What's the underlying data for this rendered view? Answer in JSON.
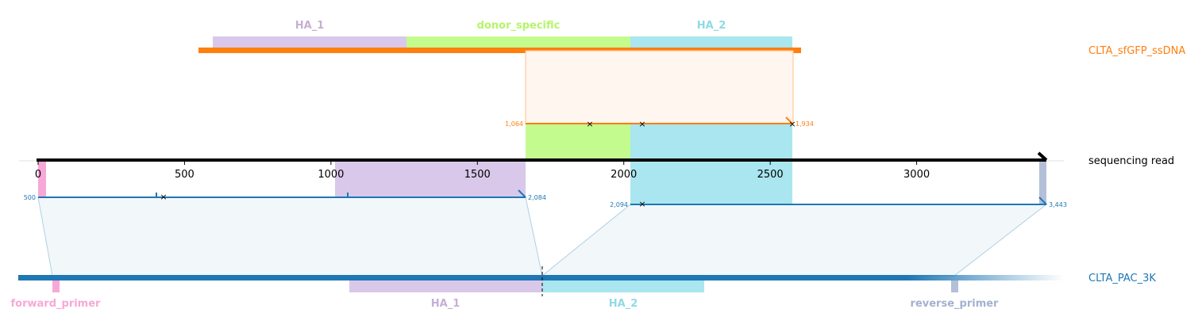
{
  "chart_data": {
    "type": "alignment-diagram",
    "axis": {
      "min": 0,
      "max": 3443,
      "ticks": [
        0,
        500,
        1000,
        1500,
        2000,
        2500,
        3000
      ]
    },
    "tracks": {
      "donor": {
        "name": "CLTA_sfGFP_ssDNA",
        "color": "#ff7f0e"
      },
      "read": {
        "name": "sequencing read",
        "color": "#000000"
      },
      "target": {
        "name": "CLTA_PAC_3K",
        "color": "#1f77b4"
      }
    },
    "donor_features": [
      {
        "name": "HA_1",
        "color": "#c5b0d5"
      },
      {
        "name": "donor_specific",
        "color": "#b5f56a"
      },
      {
        "name": "HA_2",
        "color": "#8fdae6"
      }
    ],
    "target_features": [
      {
        "name": "forward_primer",
        "color": "#f7a8d8"
      },
      {
        "name": "HA_1",
        "color": "#c5b0d5"
      },
      {
        "name": "HA_2",
        "color": "#8fdae6"
      },
      {
        "name": "reverse_primer",
        "color": "#a4b1cf"
      }
    ],
    "alignments": [
      {
        "track": "donor",
        "read_start": 1064,
        "read_end": 1934,
        "start_label": "1,064",
        "end_label": "1,934"
      },
      {
        "track": "target",
        "read_start": 500,
        "read_end": 2084,
        "start_label": "500",
        "end_label": "2,084"
      },
      {
        "track": "target",
        "read_start": 2094,
        "read_end": 3443,
        "start_label": "2,094",
        "end_label": "3,443"
      }
    ]
  }
}
